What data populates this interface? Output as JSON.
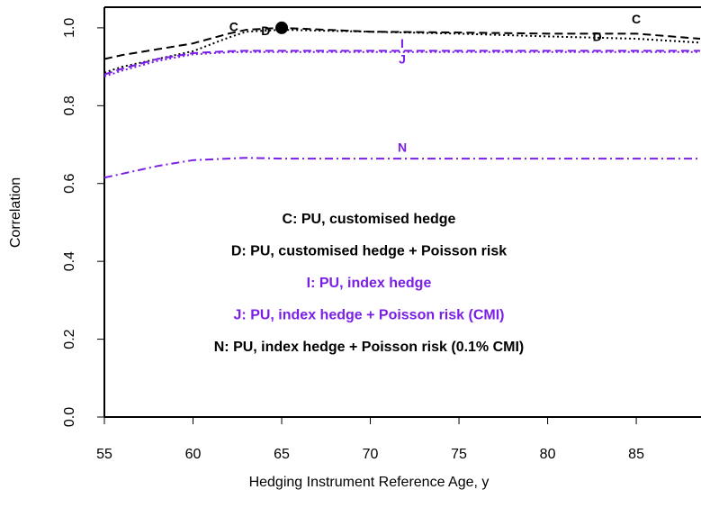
{
  "chart_data": {
    "type": "line",
    "xlabel": "Hedging Instrument Reference Age, y",
    "ylabel": "Correlation",
    "x": [
      55,
      56,
      58,
      60,
      62,
      63,
      65,
      70,
      75,
      80,
      85,
      88.6
    ],
    "series": [
      {
        "name": "C: PU, customised hedge",
        "color": "#000000",
        "linestyle": "dashed",
        "values": [
          0.92,
          0.93,
          0.945,
          0.96,
          0.985,
          0.995,
          1.0,
          0.99,
          0.988,
          0.985,
          0.985,
          0.972
        ]
      },
      {
        "name": "D: PU, customised hedge + Poisson risk",
        "color": "#000000",
        "linestyle": "dotted",
        "values": [
          0.885,
          0.9,
          0.92,
          0.94,
          0.975,
          0.99,
          0.995,
          0.99,
          0.985,
          0.978,
          0.972,
          0.962
        ]
      },
      {
        "name": "I: PU, index hedge",
        "color": "#7a1fe6",
        "linestyle": "dashed",
        "values": [
          0.88,
          0.895,
          0.92,
          0.935,
          0.94,
          0.941,
          0.941,
          0.941,
          0.941,
          0.941,
          0.941,
          0.941
        ]
      },
      {
        "name": "J: PU, index hedge + Poisson risk (CMI)",
        "color": "#7a1fe6",
        "linestyle": "dotted",
        "values": [
          0.875,
          0.89,
          0.915,
          0.932,
          0.937,
          0.938,
          0.938,
          0.938,
          0.938,
          0.938,
          0.938,
          0.938
        ]
      },
      {
        "name": "N: PU, index hedge + Poisson risk (0.1% CMI)",
        "color": "#000000",
        "linecolor": "#7a1fe6",
        "linestyle": "dashdot",
        "values": [
          0.615,
          0.625,
          0.645,
          0.66,
          0.664,
          0.666,
          0.664,
          0.664,
          0.664,
          0.664,
          0.664,
          0.664
        ]
      }
    ],
    "points": [
      {
        "x": 65,
        "y": 1.0
      }
    ],
    "annotations": [
      {
        "text": "C",
        "x": 62.3,
        "y": 1.0,
        "color": "#000000"
      },
      {
        "text": "D",
        "x": 64.1,
        "y": 0.99,
        "color": "#000000"
      },
      {
        "text": "I",
        "x": 71.8,
        "y": 0.957,
        "color": "#7a1fe6"
      },
      {
        "text": "J",
        "x": 71.8,
        "y": 0.917,
        "color": "#7a1fe6"
      },
      {
        "text": "N",
        "x": 71.8,
        "y": 0.69,
        "color": "#7a1fe6"
      },
      {
        "text": "C",
        "x": 85,
        "y": 1.02,
        "color": "#000000"
      },
      {
        "text": "D",
        "x": 82.8,
        "y": 0.975,
        "color": "#000000"
      }
    ],
    "xlim": [
      55,
      88.65
    ],
    "ylim": [
      0,
      1.053
    ],
    "xticks": [
      55,
      60,
      65,
      70,
      75,
      80,
      85
    ],
    "yticks": [
      {
        "value": 0,
        "label": "0.0"
      },
      0.2,
      0.4,
      0.6,
      0.8,
      {
        "value": 1,
        "label": "1.0"
      }
    ]
  }
}
